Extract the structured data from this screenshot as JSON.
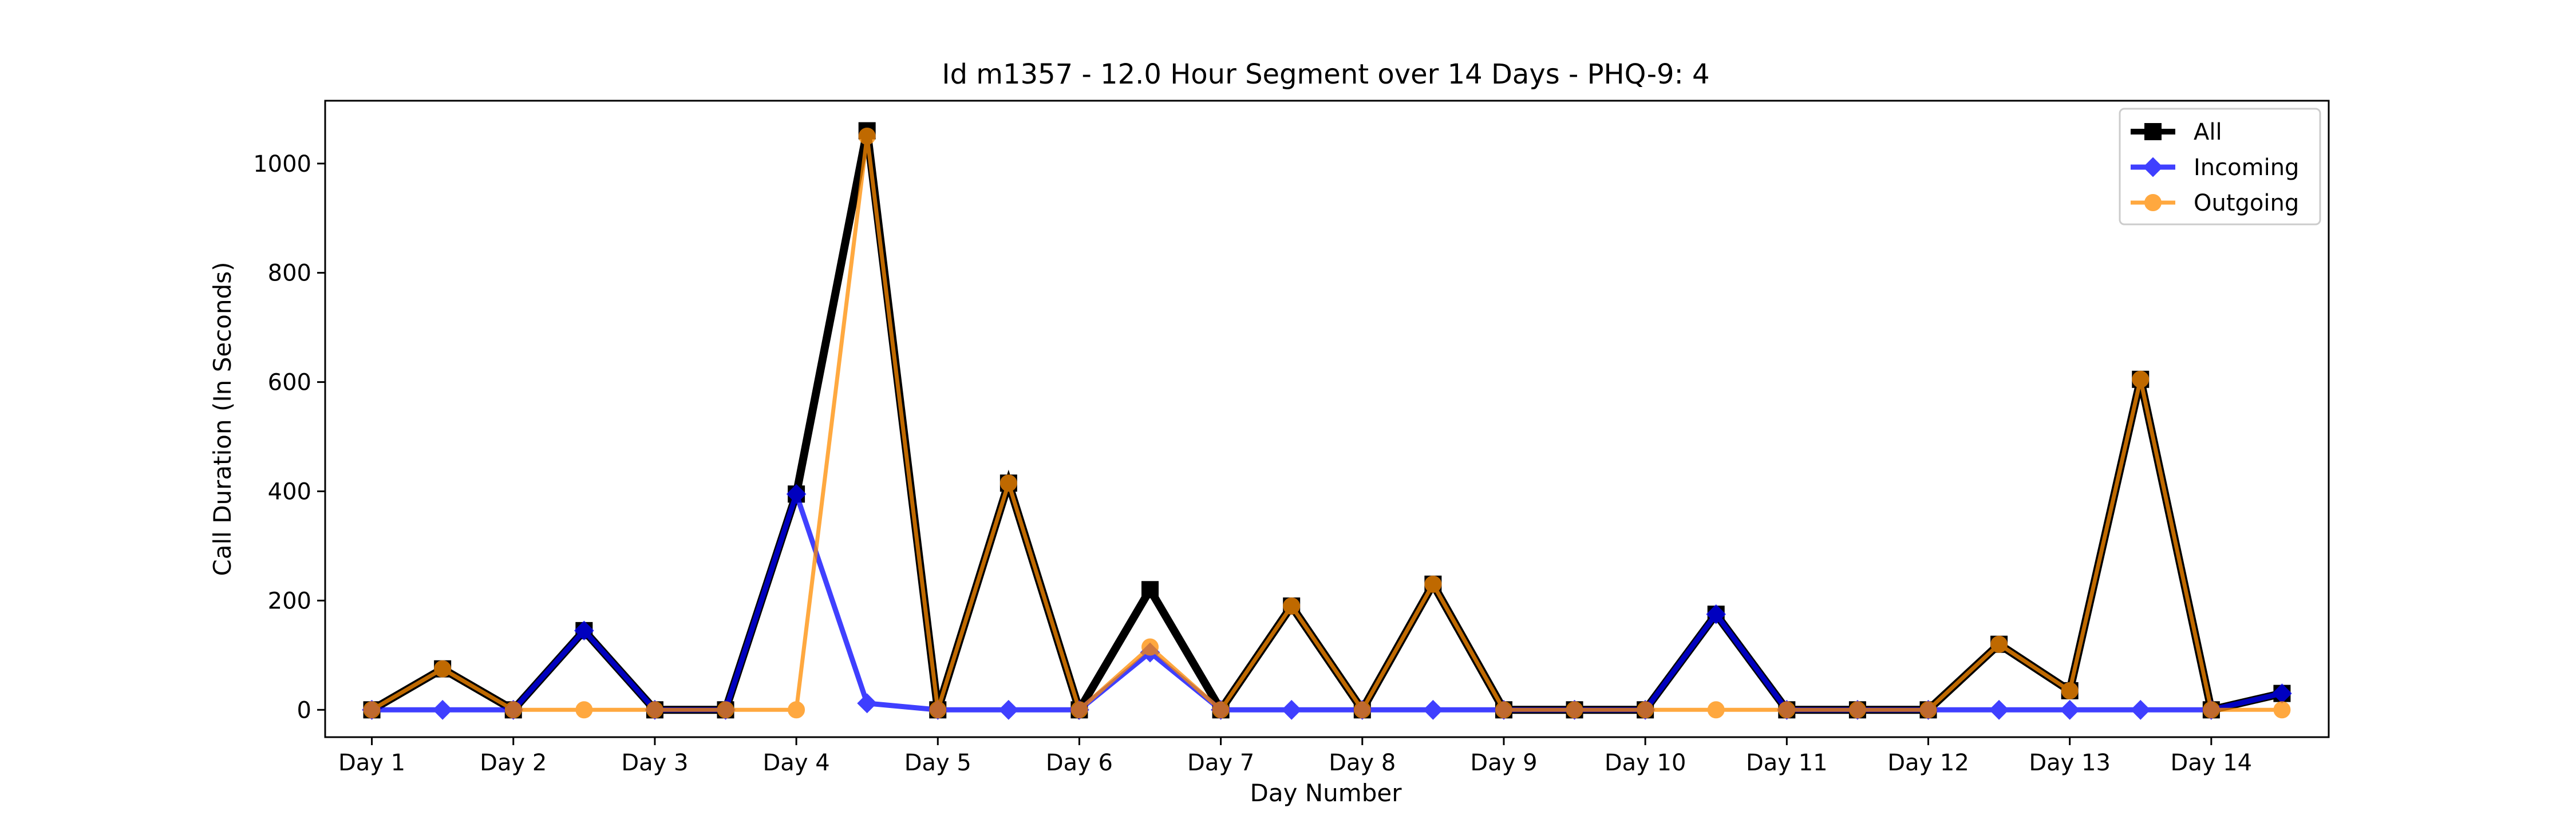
{
  "chart_data": {
    "type": "line",
    "title": "Id m1357 - 12.0 Hour Segment over 14 Days - PHQ-9: 4",
    "xlabel": "Day Number",
    "ylabel": "Call Duration (In Seconds)",
    "x_tick_labels": [
      "Day 1",
      "Day 2",
      "Day 3",
      "Day 4",
      "Day 5",
      "Day 6",
      "Day 7",
      "Day 8",
      "Day 9",
      "Day 10",
      "Day 11",
      "Day 12",
      "Day 13",
      "Day 14"
    ],
    "y_ticks": [
      0,
      200,
      400,
      600,
      800,
      1000
    ],
    "ylim": [
      -50,
      1115
    ],
    "xlim": [
      -0.66,
      27.66
    ],
    "grid": false,
    "legend_position": "top-right",
    "series": [
      {
        "name": "All",
        "color": "#000000",
        "marker": "square",
        "values": [
          0,
          75,
          0,
          145,
          0,
          0,
          395,
          1060,
          0,
          415,
          0,
          220,
          0,
          190,
          0,
          230,
          0,
          0,
          0,
          175,
          0,
          0,
          0,
          120,
          35,
          605,
          0,
          30
        ]
      },
      {
        "name": "Incoming",
        "color": "#0000ff",
        "marker": "diamond",
        "values": [
          0,
          0,
          0,
          145,
          0,
          0,
          395,
          12,
          0,
          0,
          0,
          105,
          0,
          0,
          0,
          0,
          0,
          0,
          0,
          175,
          0,
          0,
          0,
          0,
          0,
          0,
          0,
          30
        ]
      },
      {
        "name": "Outgoing",
        "color": "#ff8c00",
        "marker": "circle",
        "values": [
          0,
          75,
          0,
          0,
          0,
          0,
          0,
          1050,
          0,
          415,
          0,
          115,
          0,
          190,
          0,
          230,
          0,
          0,
          0,
          0,
          0,
          0,
          0,
          120,
          35,
          605,
          0,
          0
        ]
      }
    ]
  }
}
